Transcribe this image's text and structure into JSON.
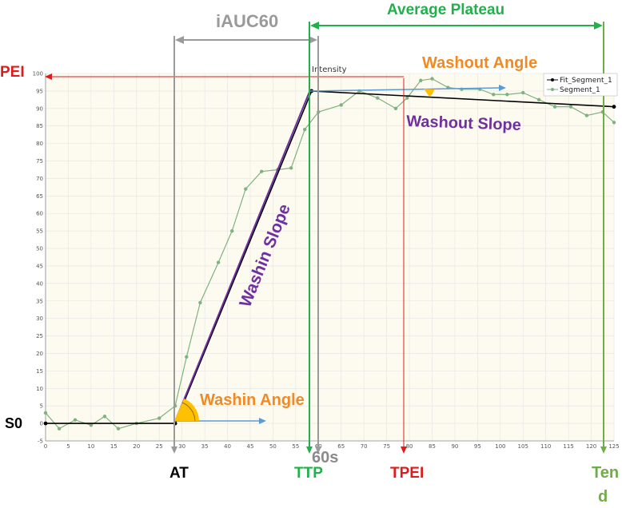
{
  "chart_data": {
    "type": "line",
    "title": "",
    "ylabel": "Intensity",
    "xlabel": "",
    "xlim": [
      0,
      125
    ],
    "ylim": [
      -5,
      100
    ],
    "x_ticks": [
      0,
      5,
      10,
      15,
      20,
      25,
      30,
      35,
      40,
      45,
      50,
      55,
      60,
      65,
      70,
      75,
      80,
      85,
      90,
      95,
      100,
      105,
      110,
      115,
      120,
      125
    ],
    "y_ticks": [
      -5,
      0,
      5,
      10,
      15,
      20,
      25,
      30,
      35,
      40,
      45,
      50,
      55,
      60,
      65,
      70,
      75,
      80,
      85,
      90,
      95,
      100
    ],
    "grid": true,
    "legend_position": "top-right",
    "series": [
      {
        "name": "Fit_Segment_1",
        "color": "#000000",
        "x": [
          0,
          28.5,
          58.5,
          125
        ],
        "y": [
          0,
          0,
          95,
          90.5
        ]
      },
      {
        "name": "Segment_1",
        "color": "#7fb27f",
        "x": [
          0,
          3,
          6.5,
          10,
          13,
          16,
          20,
          25,
          28.5,
          31,
          34,
          38,
          41,
          44,
          47.5,
          51,
          54,
          57,
          60,
          65,
          69,
          73,
          77,
          79.5,
          82.5,
          85,
          88.5,
          91.5,
          95.5,
          98.5,
          101.5,
          105,
          108.5,
          112,
          115.5,
          119,
          122.5,
          125
        ],
        "y": [
          3,
          -1.5,
          1,
          -0.5,
          2,
          -1.5,
          0,
          1.5,
          5,
          19,
          34.5,
          46,
          55,
          67,
          72,
          72.5,
          73,
          84,
          89,
          91,
          95,
          93,
          90,
          93,
          98,
          98.5,
          96,
          95.5,
          95.5,
          94,
          94,
          94.5,
          92.5,
          90.5,
          90.5,
          88,
          89,
          86
        ]
      }
    ],
    "annotations": {
      "pei": "PEI",
      "s0": "S0",
      "iauc60": "iAUC60",
      "average_plateau": "Average Plateau",
      "washout_angle": "Washout Angle",
      "washout_slope": "Washout Slope",
      "washin_slope": "Washin Slope",
      "washin_angle": "Washin Angle",
      "sixty_s": "60s",
      "at": "AT",
      "ttp": "TTP",
      "tpei": "TPEI",
      "tend": "Ten d"
    },
    "colors": {
      "plot_bg": "#fdfbf0",
      "grid": "#e3e3e3",
      "gray": "#9a9a9a",
      "green": "#22b04c",
      "red": "#e01b1b",
      "orange": "#f08a24",
      "purple": "#7030a0",
      "blue": "#5b9bd5",
      "olive": "#70ad47",
      "angle_fill": "#ffc000"
    }
  }
}
